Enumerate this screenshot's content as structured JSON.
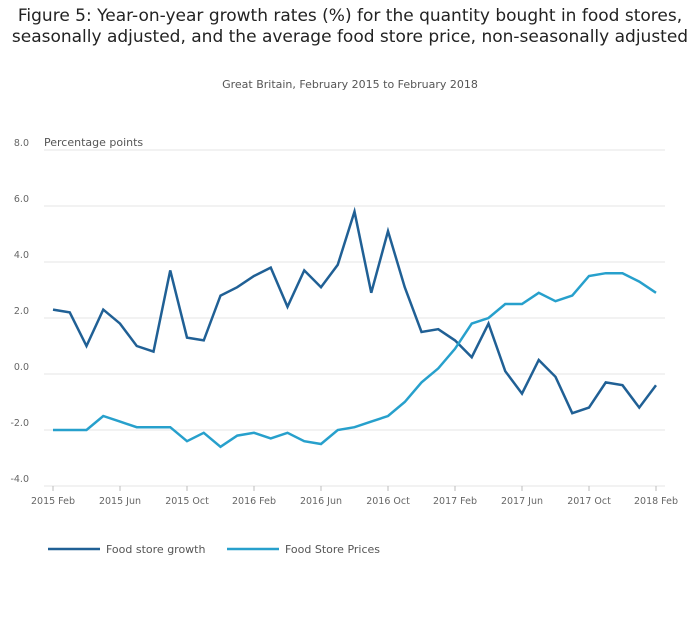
{
  "chart_data": {
    "type": "line",
    "title": "Figure 5: Year-on-year growth rates (%) for the quantity bought in food stores, seasonally adjusted, and the average food store price, non-seasonally adjusted",
    "subtitle": "Great Britain, February 2015 to February 2018",
    "ylabel": "Percentage points",
    "xlabel": "",
    "ylim": [
      -4.0,
      8.0
    ],
    "yticks": [
      "8.0",
      "6.0",
      "4.0",
      "2.0",
      "0.0",
      "-2.0",
      "-4.0"
    ],
    "ytick_values": [
      8,
      6,
      4,
      2,
      0,
      -2,
      -4
    ],
    "x": [
      "2015 Feb",
      "2015 Mar",
      "2015 Apr",
      "2015 May",
      "2015 Jun",
      "2015 Jul",
      "2015 Aug",
      "2015 Sep",
      "2015 Oct",
      "2015 Nov",
      "2015 Dec",
      "2016 Jan",
      "2016 Feb",
      "2016 Mar",
      "2016 Apr",
      "2016 May",
      "2016 Jun",
      "2016 Jul",
      "2016 Aug",
      "2016 Sep",
      "2016 Oct",
      "2016 Nov",
      "2016 Dec",
      "2017 Jan",
      "2017 Feb",
      "2017 Mar",
      "2017 Apr",
      "2017 May",
      "2017 Jun",
      "2017 Jul",
      "2017 Aug",
      "2017 Sep",
      "2017 Oct",
      "2017 Nov",
      "2017 Dec",
      "2018 Jan",
      "2018 Feb"
    ],
    "xticks": [
      "2015 Feb",
      "2015 Jun",
      "2015 Oct",
      "2016 Feb",
      "2016 Jun",
      "2016 Oct",
      "2017 Feb",
      "2017 Jun",
      "2017 Oct",
      "2018 Feb"
    ],
    "xtick_indices": [
      0,
      4,
      8,
      12,
      16,
      20,
      24,
      28,
      32,
      36
    ],
    "series": [
      {
        "name": "Food store growth",
        "color": "#206095",
        "values": [
          2.3,
          2.2,
          1.0,
          2.3,
          1.8,
          1.0,
          0.8,
          3.7,
          1.3,
          1.2,
          2.8,
          3.1,
          3.5,
          3.8,
          2.4,
          3.7,
          3.1,
          3.9,
          5.8,
          2.9,
          5.1,
          3.1,
          1.5,
          1.6,
          1.2,
          0.6,
          1.8,
          0.1,
          -0.7,
          0.5,
          -0.1,
          -1.4,
          -1.2,
          -0.3,
          -0.4,
          -1.2,
          -0.4
        ]
      },
      {
        "name": "Food Store Prices",
        "color": "#27a0cc",
        "values": [
          -2.0,
          -2.0,
          -2.0,
          -1.5,
          -1.7,
          -1.9,
          -1.9,
          -1.9,
          -2.4,
          -2.1,
          -2.6,
          -2.2,
          -2.1,
          -2.3,
          -2.1,
          -2.4,
          -2.5,
          -2.0,
          -1.9,
          -1.7,
          -1.5,
          -1.0,
          -0.3,
          0.2,
          0.9,
          1.8,
          2.0,
          2.5,
          2.5,
          2.9,
          2.6,
          2.8,
          3.5,
          3.6,
          3.6,
          3.3,
          2.9
        ]
      }
    ],
    "legend_position": "bottom-left",
    "grid": true
  }
}
